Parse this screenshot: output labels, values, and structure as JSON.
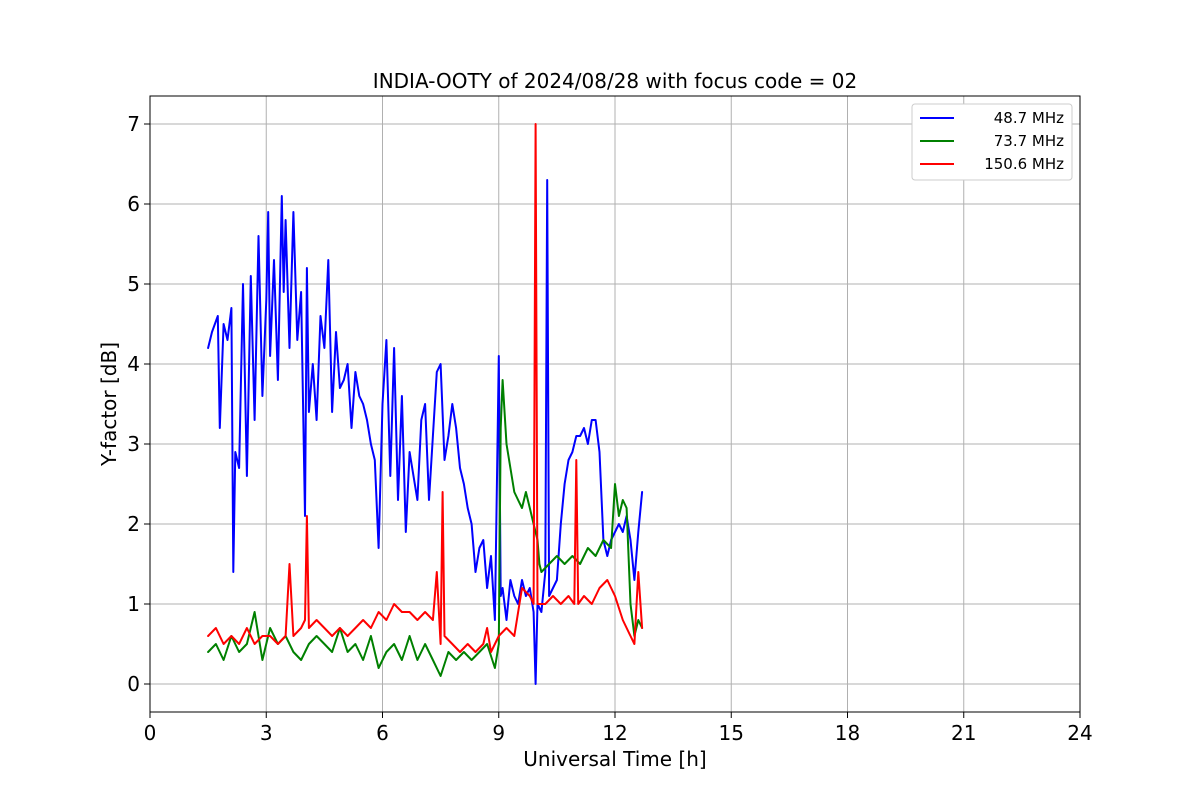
{
  "chart_data": {
    "type": "line",
    "title": "INDIA-OOTY of 2024/08/28 with focus code = 02",
    "xlabel": "Universal Time [h]",
    "ylabel": "Y-factor [dB]",
    "xlim": [
      0,
      24
    ],
    "ylim": [
      -0.35,
      7.35
    ],
    "x_ticks": [
      "0",
      "3",
      "6",
      "9",
      "12",
      "15",
      "18",
      "21",
      "24"
    ],
    "y_ticks": [
      "0",
      "1",
      "2",
      "3",
      "4",
      "5",
      "6",
      "7"
    ],
    "grid": true,
    "legend_placement": "top-right",
    "series": [
      {
        "name": "48.7 MHz",
        "color": "#0000ff",
        "x": [
          1.5,
          1.6,
          1.75,
          1.8,
          1.9,
          2.0,
          2.1,
          2.15,
          2.2,
          2.3,
          2.4,
          2.5,
          2.6,
          2.7,
          2.8,
          2.9,
          3.0,
          3.05,
          3.1,
          3.2,
          3.3,
          3.4,
          3.45,
          3.5,
          3.6,
          3.7,
          3.8,
          3.9,
          4.0,
          4.05,
          4.1,
          4.2,
          4.3,
          4.4,
          4.5,
          4.6,
          4.7,
          4.8,
          4.9,
          5.0,
          5.1,
          5.2,
          5.3,
          5.4,
          5.5,
          5.6,
          5.7,
          5.8,
          5.9,
          6.0,
          6.1,
          6.2,
          6.3,
          6.4,
          6.5,
          6.6,
          6.7,
          6.8,
          6.9,
          7.0,
          7.1,
          7.2,
          7.3,
          7.4,
          7.5,
          7.6,
          7.7,
          7.8,
          7.9,
          8.0,
          8.1,
          8.2,
          8.3,
          8.4,
          8.5,
          8.6,
          8.7,
          8.8,
          8.9,
          9.0,
          9.05,
          9.1,
          9.2,
          9.3,
          9.4,
          9.5,
          9.6,
          9.7,
          9.8,
          9.9,
          9.95,
          10.0,
          10.1,
          10.2,
          10.25,
          10.3,
          10.4,
          10.5,
          10.6,
          10.7,
          10.8,
          10.9,
          11.0,
          11.1,
          11.2,
          11.3,
          11.4,
          11.5,
          11.6,
          11.7,
          11.8,
          11.9,
          12.0,
          12.1,
          12.2,
          12.3,
          12.4,
          12.5,
          12.6,
          12.7
        ],
        "values": [
          4.2,
          4.4,
          4.6,
          3.2,
          4.5,
          4.3,
          4.7,
          1.4,
          2.9,
          2.7,
          5.0,
          2.6,
          5.1,
          3.3,
          5.6,
          3.6,
          4.8,
          5.9,
          4.1,
          5.3,
          3.8,
          6.1,
          4.9,
          5.8,
          4.2,
          5.9,
          4.3,
          4.9,
          2.1,
          5.2,
          3.4,
          4.0,
          3.3,
          4.6,
          4.2,
          5.3,
          3.4,
          4.4,
          3.7,
          3.8,
          4.0,
          3.2,
          3.9,
          3.6,
          3.5,
          3.3,
          3.0,
          2.8,
          1.7,
          3.5,
          4.3,
          2.6,
          4.2,
          2.3,
          3.6,
          1.9,
          2.9,
          2.6,
          2.3,
          3.3,
          3.5,
          2.3,
          3.1,
          3.9,
          4.0,
          2.8,
          3.1,
          3.5,
          3.2,
          2.7,
          2.5,
          2.2,
          2.0,
          1.4,
          1.7,
          1.8,
          1.2,
          1.6,
          0.8,
          4.1,
          1.1,
          1.2,
          0.8,
          1.3,
          1.1,
          1.0,
          1.3,
          1.1,
          1.2,
          0.9,
          0.0,
          1.0,
          0.9,
          1.4,
          6.3,
          1.1,
          1.2,
          1.3,
          2.0,
          2.5,
          2.8,
          2.9,
          3.1,
          3.1,
          3.2,
          3.0,
          3.3,
          3.3,
          2.9,
          1.8,
          1.6,
          1.8,
          1.9,
          2.0,
          1.9,
          2.1,
          1.8,
          1.3,
          1.9,
          2.4
        ]
      },
      {
        "name": "73.7 MHz",
        "color": "#008000",
        "x": [
          1.5,
          1.7,
          1.9,
          2.1,
          2.3,
          2.5,
          2.7,
          2.9,
          3.1,
          3.3,
          3.5,
          3.7,
          3.9,
          4.1,
          4.3,
          4.5,
          4.7,
          4.9,
          5.1,
          5.3,
          5.5,
          5.7,
          5.9,
          6.1,
          6.3,
          6.5,
          6.7,
          6.9,
          7.1,
          7.3,
          7.5,
          7.7,
          7.9,
          8.1,
          8.3,
          8.5,
          8.7,
          8.9,
          9.0,
          9.05,
          9.1,
          9.2,
          9.3,
          9.4,
          9.5,
          9.6,
          9.7,
          9.8,
          9.9,
          10.0,
          10.05,
          10.1,
          10.3,
          10.5,
          10.7,
          10.9,
          11.1,
          11.3,
          11.5,
          11.7,
          11.9,
          12.0,
          12.1,
          12.2,
          12.3,
          12.4,
          12.5,
          12.6,
          12.7
        ],
        "values": [
          0.4,
          0.5,
          0.3,
          0.6,
          0.4,
          0.5,
          0.9,
          0.3,
          0.7,
          0.5,
          0.6,
          0.4,
          0.3,
          0.5,
          0.6,
          0.5,
          0.4,
          0.7,
          0.4,
          0.5,
          0.3,
          0.6,
          0.2,
          0.4,
          0.5,
          0.3,
          0.6,
          0.3,
          0.5,
          0.3,
          0.1,
          0.4,
          0.3,
          0.4,
          0.3,
          0.4,
          0.5,
          0.2,
          0.5,
          3.2,
          3.8,
          3.0,
          2.7,
          2.4,
          2.3,
          2.2,
          2.4,
          2.2,
          2.0,
          1.8,
          1.5,
          1.4,
          1.5,
          1.6,
          1.5,
          1.6,
          1.5,
          1.7,
          1.6,
          1.8,
          1.7,
          2.5,
          2.1,
          2.3,
          2.2,
          1.0,
          0.6,
          0.8,
          0.7
        ]
      },
      {
        "name": "150.6 MHz",
        "color": "#ff0000",
        "x": [
          1.5,
          1.7,
          1.9,
          2.1,
          2.3,
          2.5,
          2.7,
          2.9,
          3.1,
          3.3,
          3.5,
          3.6,
          3.7,
          3.9,
          4.0,
          4.05,
          4.1,
          4.3,
          4.5,
          4.7,
          4.9,
          5.1,
          5.3,
          5.5,
          5.7,
          5.9,
          6.1,
          6.3,
          6.5,
          6.7,
          6.9,
          7.1,
          7.3,
          7.4,
          7.5,
          7.55,
          7.6,
          7.8,
          8.0,
          8.2,
          8.4,
          8.6,
          8.7,
          8.8,
          9.0,
          9.2,
          9.4,
          9.6,
          9.8,
          9.9,
          9.95,
          10.0,
          10.2,
          10.4,
          10.6,
          10.8,
          10.95,
          11.0,
          11.05,
          11.2,
          11.4,
          11.6,
          11.8,
          12.0,
          12.2,
          12.4,
          12.5,
          12.6,
          12.7
        ],
        "values": [
          0.6,
          0.7,
          0.5,
          0.6,
          0.5,
          0.7,
          0.5,
          0.6,
          0.6,
          0.5,
          0.6,
          1.5,
          0.6,
          0.7,
          0.8,
          2.1,
          0.7,
          0.8,
          0.7,
          0.6,
          0.7,
          0.6,
          0.7,
          0.8,
          0.7,
          0.9,
          0.8,
          1.0,
          0.9,
          0.9,
          0.8,
          0.9,
          0.8,
          1.4,
          0.5,
          2.4,
          0.6,
          0.5,
          0.4,
          0.5,
          0.4,
          0.5,
          0.7,
          0.4,
          0.6,
          0.7,
          0.6,
          1.2,
          1.1,
          1.0,
          7.0,
          1.0,
          1.0,
          1.1,
          1.0,
          1.1,
          1.0,
          2.8,
          1.0,
          1.1,
          1.0,
          1.2,
          1.3,
          1.1,
          0.8,
          0.6,
          0.5,
          1.4,
          0.7
        ]
      }
    ]
  }
}
